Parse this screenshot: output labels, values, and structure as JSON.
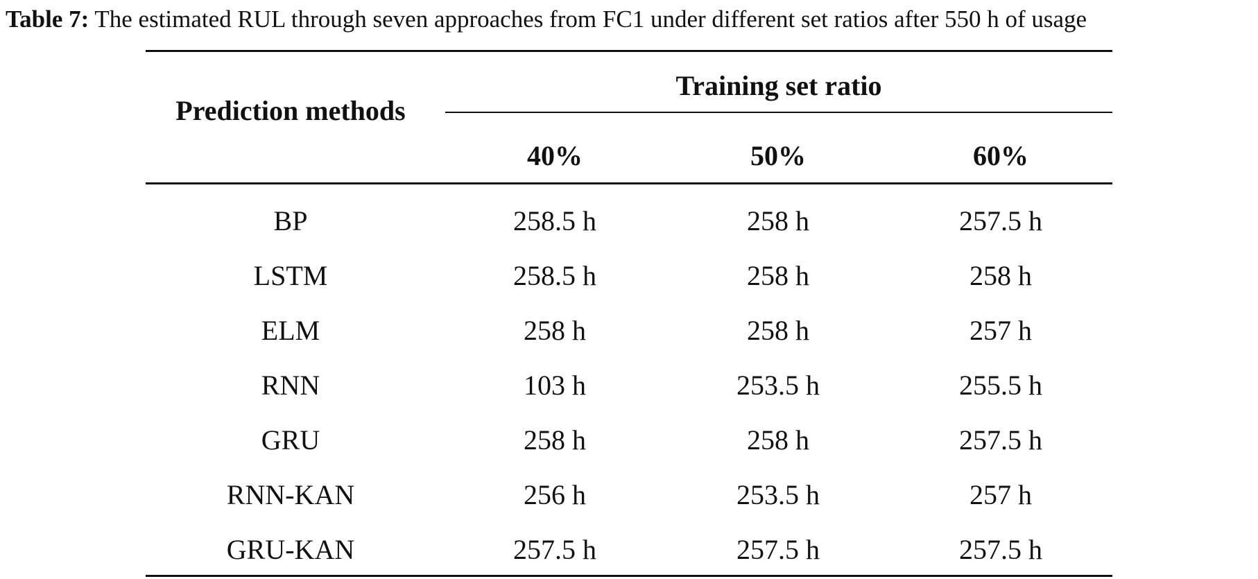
{
  "caption": {
    "label": "Table 7:",
    "text": "The estimated RUL through seven approaches from FC1 under different set ratios after 550 h of usage"
  },
  "table": {
    "row_header": "Prediction methods",
    "group_header": "Training set ratio",
    "columns": [
      "40%",
      "50%",
      "60%"
    ],
    "rows": [
      {
        "method": "BP",
        "values": [
          "258.5 h",
          "258 h",
          "257.5 h"
        ]
      },
      {
        "method": "LSTM",
        "values": [
          "258.5 h",
          "258 h",
          "258 h"
        ]
      },
      {
        "method": "ELM",
        "values": [
          "258 h",
          "258 h",
          "257 h"
        ]
      },
      {
        "method": "RNN",
        "values": [
          "103 h",
          "253.5 h",
          "255.5 h"
        ]
      },
      {
        "method": "GRU",
        "values": [
          "258 h",
          "258 h",
          "257.5 h"
        ]
      },
      {
        "method": "RNN-KAN",
        "values": [
          "256 h",
          "253.5 h",
          "257 h"
        ]
      },
      {
        "method": "GRU-KAN",
        "values": [
          "257.5 h",
          "257.5 h",
          "257.5 h"
        ]
      }
    ]
  }
}
